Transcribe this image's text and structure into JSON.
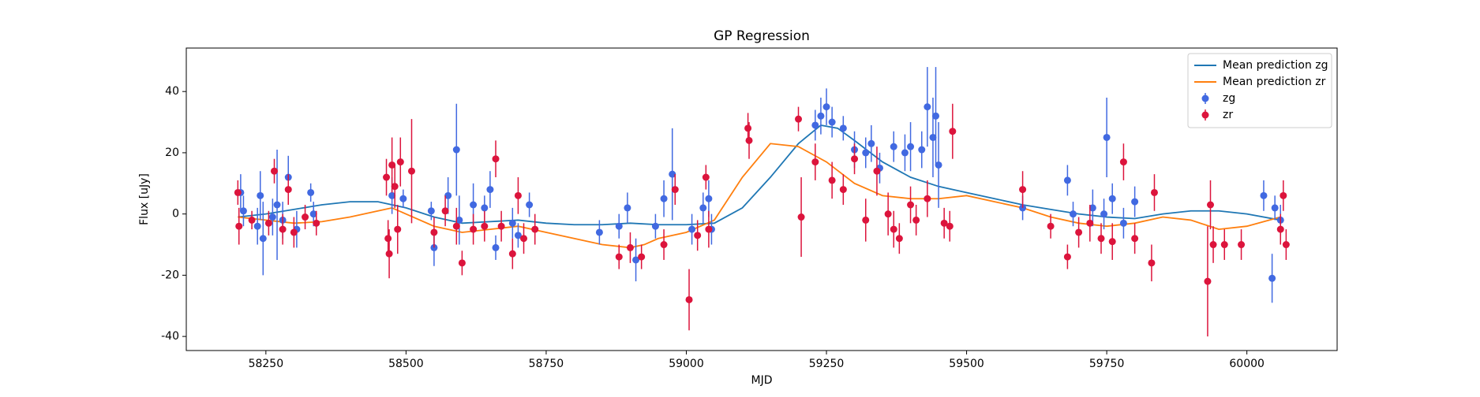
{
  "chart_data": {
    "type": "line",
    "title": "GP Regression",
    "x_label": "MJD",
    "y_label": "Flux [uJy]",
    "xlim": [
      58108,
      60161
    ],
    "ylim": [
      -44.6,
      54.2
    ],
    "xticks": [
      58250,
      58500,
      58750,
      59000,
      59250,
      59500,
      59750,
      60000
    ],
    "yticks": [
      -40,
      -20,
      0,
      20,
      40
    ],
    "legend": "upper right",
    "series": [
      {
        "name": "Mean prediction zg",
        "type": "line",
        "color": "#1f77b4",
        "x": [
          58200,
          58250,
          58300,
          58350,
          58400,
          58450,
          58500,
          58550,
          58600,
          58650,
          58700,
          58750,
          58800,
          58850,
          58900,
          58950,
          59000,
          59050,
          59100,
          59150,
          59200,
          59240,
          59270,
          59300,
          59350,
          59400,
          59450,
          59500,
          59550,
          59600,
          59650,
          59700,
          59750,
          59800,
          59850,
          59900,
          59950,
          60000,
          60060
        ],
        "values": [
          -1,
          0,
          1.5,
          3,
          4,
          4,
          2,
          -1,
          -3,
          -2.5,
          -2,
          -3,
          -3.5,
          -3.5,
          -3,
          -3.5,
          -3.5,
          -3,
          2,
          12,
          23,
          29,
          28,
          24,
          17,
          12,
          9,
          7,
          5,
          3,
          1.5,
          0,
          -1,
          -1.5,
          0,
          1,
          1,
          0,
          -2
        ]
      },
      {
        "name": "Mean prediction zr",
        "type": "line",
        "color": "#ff7f0e",
        "x": [
          58200,
          58250,
          58300,
          58350,
          58400,
          58450,
          58475,
          58500,
          58550,
          58600,
          58650,
          58700,
          58750,
          58800,
          58850,
          58900,
          58925,
          58950,
          59000,
          59050,
          59100,
          59150,
          59200,
          59250,
          59300,
          59350,
          59400,
          59450,
          59500,
          59550,
          59600,
          59650,
          59700,
          59750,
          59800,
          59850,
          59900,
          59950,
          60000,
          60060
        ],
        "values": [
          -1,
          -2,
          -3,
          -2.5,
          -1,
          1,
          2,
          0,
          -4,
          -6,
          -5,
          -4,
          -6,
          -8,
          -10,
          -11,
          -10,
          -8,
          -6,
          -2,
          12,
          23,
          22,
          17,
          10,
          6,
          5,
          5,
          6,
          4,
          2,
          -1,
          -3,
          -4,
          -3,
          -1,
          -2,
          -5,
          -4,
          -1
        ]
      },
      {
        "name": "zg",
        "type": "errorbar",
        "color": "#4169e1",
        "x": [
          58205,
          58210,
          58235,
          58240,
          58245,
          58262,
          58270,
          58280,
          58290,
          58305,
          58330,
          58335,
          58475,
          58495,
          58545,
          58550,
          58575,
          58590,
          58595,
          58620,
          58640,
          58650,
          58660,
          58690,
          58700,
          58720,
          58845,
          58880,
          58895,
          58910,
          58945,
          58960,
          58975,
          59010,
          59030,
          59040,
          59045,
          59230,
          59240,
          59250,
          59260,
          59280,
          59300,
          59320,
          59330,
          59345,
          59370,
          59390,
          59400,
          59420,
          59430,
          59440,
          59445,
          59450,
          59600,
          59680,
          59690,
          59725,
          59745,
          59750,
          59760,
          59780,
          59800,
          60030,
          60045,
          60050,
          60060
        ],
        "values": [
          7,
          1,
          -4,
          6,
          -8,
          -1,
          3,
          -2,
          12,
          -5,
          7,
          0,
          6,
          5,
          1,
          -11,
          6,
          21,
          -2,
          3,
          2,
          8,
          -11,
          -3,
          -7,
          3,
          -6,
          -4,
          2,
          -15,
          -4,
          5,
          13,
          -5,
          2,
          5,
          -5,
          29,
          32,
          35,
          30,
          28,
          21,
          20,
          23,
          15,
          22,
          20,
          22,
          21,
          35,
          25,
          32,
          16,
          2,
          11,
          0,
          2,
          0,
          25,
          5,
          -3,
          4,
          6,
          -21,
          2,
          -2
        ],
        "errors": [
          6,
          5,
          6,
          8,
          12,
          6,
          18,
          6,
          7,
          6,
          3,
          4,
          6,
          3,
          3,
          6,
          6,
          15,
          8,
          7,
          4,
          6,
          4,
          5,
          4,
          4,
          4,
          4,
          5,
          7,
          4,
          6,
          15,
          5,
          5,
          6,
          5,
          5,
          6,
          6,
          5,
          4,
          6,
          5,
          6,
          5,
          5,
          6,
          8,
          6,
          13,
          13,
          16,
          14,
          4,
          5,
          4,
          6,
          5,
          13,
          5,
          5,
          5,
          5,
          8,
          4,
          5
        ]
      },
      {
        "name": "zr",
        "type": "errorbar",
        "color": "#dc143c",
        "x": [
          58200,
          58202,
          58225,
          58255,
          58265,
          58280,
          58290,
          58300,
          58320,
          58340,
          58465,
          58468,
          58470,
          58475,
          58480,
          58485,
          58490,
          58510,
          58550,
          58570,
          58590,
          58600,
          58620,
          58640,
          58660,
          58670,
          58690,
          58700,
          58710,
          58730,
          58880,
          58900,
          58920,
          58960,
          58980,
          59005,
          59020,
          59035,
          59040,
          59110,
          59112,
          59200,
          59205,
          59230,
          59260,
          59280,
          59300,
          59320,
          59340,
          59360,
          59370,
          59380,
          59400,
          59410,
          59430,
          59460,
          59470,
          59475,
          59600,
          59650,
          59680,
          59700,
          59720,
          59740,
          59760,
          59780,
          59800,
          59830,
          59835,
          59930,
          59935,
          59940,
          59960,
          59990,
          60060,
          60065,
          60070
        ],
        "values": [
          7,
          -4,
          -2,
          -3,
          14,
          -5,
          8,
          -6,
          -1,
          -3,
          12,
          -8,
          -13,
          16,
          9,
          -5,
          17,
          14,
          -6,
          1,
          -4,
          -16,
          -5,
          -4,
          18,
          -4,
          -13,
          6,
          -8,
          -5,
          -14,
          -11,
          -14,
          -10,
          8,
          -28,
          -7,
          12,
          -5,
          28,
          24,
          31,
          -1,
          17,
          11,
          8,
          18,
          -2,
          14,
          0,
          -5,
          -8,
          3,
          -2,
          5,
          -3,
          -4,
          27,
          8,
          -4,
          -14,
          -6,
          -3,
          -8,
          -9,
          17,
          -8,
          -16,
          7,
          -22,
          3,
          -10,
          -10,
          -10,
          -5,
          6,
          -10
        ],
        "errors": [
          4,
          6,
          3,
          4,
          4,
          5,
          5,
          5,
          4,
          4,
          6,
          6,
          8,
          9,
          7,
          8,
          8,
          17,
          5,
          5,
          6,
          4,
          5,
          5,
          6,
          5,
          5,
          6,
          5,
          5,
          4,
          5,
          4,
          5,
          5,
          10,
          5,
          4,
          6,
          5,
          6,
          4,
          13,
          6,
          6,
          5,
          5,
          7,
          8,
          7,
          6,
          5,
          6,
          5,
          6,
          5,
          5,
          9,
          6,
          4,
          4,
          5,
          6,
          5,
          6,
          6,
          5,
          6,
          6,
          18,
          8,
          6,
          5,
          5,
          5,
          5,
          5
        ]
      }
    ]
  }
}
